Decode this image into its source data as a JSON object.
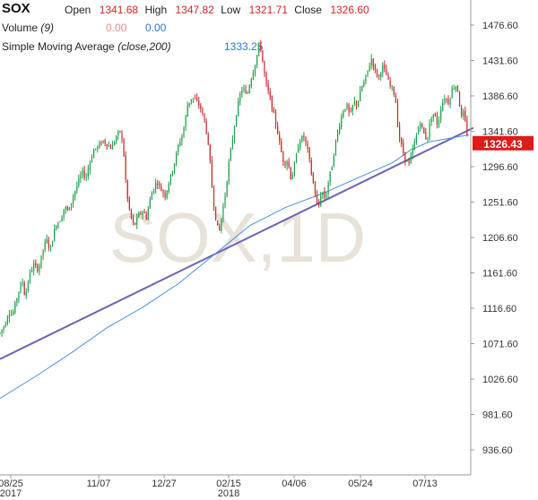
{
  "header": {
    "symbol": "SOX",
    "open_label": "Open",
    "open": "1341.68",
    "high_label": "High",
    "high": "1347.82",
    "low_label": "Low",
    "low": "1321.71",
    "close_label": "Close",
    "close": "1326.60",
    "volume_label": "Volume",
    "volume_param": "(9)",
    "volume_val1": "0.00",
    "volume_val2": "0.00",
    "sma_label": "Simple Moving Average",
    "sma_param": "(close,200)",
    "sma_value": "1333.25"
  },
  "watermark": "SOX,1D",
  "last_price_badge": "1326.43",
  "colors": {
    "up": "#1f9e4a",
    "down": "#c42a2a",
    "sma": "#4a90e2",
    "trendline": "#6b62b5",
    "badge": "#e01b1b"
  },
  "chart_data": {
    "type": "candlestick",
    "title": "SOX",
    "ylim": [
      920,
      1495
    ],
    "y_ticks": [
      "1476.60",
      "1431.60",
      "1386.60",
      "1341.60",
      "1296.60",
      "1251.60",
      "1206.60",
      "1161.60",
      "1116.60",
      "1071.60",
      "1026.60",
      "981.60",
      "936.60"
    ],
    "x_ticks": [
      {
        "label": "08/25",
        "sub": "2017"
      },
      {
        "label": "11/07",
        "sub": ""
      },
      {
        "label": "12/27",
        "sub": ""
      },
      {
        "label": "02/15",
        "sub": "2018"
      },
      {
        "label": "04/06",
        "sub": ""
      },
      {
        "label": "05/24",
        "sub": ""
      },
      {
        "label": "07/13",
        "sub": ""
      }
    ],
    "price_path": [
      [
        0,
        1085
      ],
      [
        5,
        1095
      ],
      [
        10,
        1112
      ],
      [
        14,
        1108
      ],
      [
        20,
        1135
      ],
      [
        25,
        1152
      ],
      [
        28,
        1130
      ],
      [
        33,
        1160
      ],
      [
        38,
        1172
      ],
      [
        43,
        1165
      ],
      [
        48,
        1190
      ],
      [
        52,
        1205
      ],
      [
        56,
        1190
      ],
      [
        62,
        1222
      ],
      [
        68,
        1230
      ],
      [
        72,
        1245
      ],
      [
        77,
        1240
      ],
      [
        82,
        1260
      ],
      [
        87,
        1275
      ],
      [
        92,
        1290
      ],
      [
        96,
        1282
      ],
      [
        100,
        1300
      ],
      [
        105,
        1318
      ],
      [
        110,
        1322
      ],
      [
        115,
        1330
      ],
      [
        120,
        1325
      ],
      [
        125,
        1320
      ],
      [
        130,
        1335
      ],
      [
        135,
        1342
      ],
      [
        138,
        1320
      ],
      [
        142,
        1260
      ],
      [
        146,
        1235
      ],
      [
        150,
        1220
      ],
      [
        155,
        1235
      ],
      [
        160,
        1240
      ],
      [
        164,
        1232
      ],
      [
        168,
        1255
      ],
      [
        172,
        1270
      ],
      [
        176,
        1278
      ],
      [
        180,
        1268
      ],
      [
        185,
        1260
      ],
      [
        190,
        1280
      ],
      [
        195,
        1300
      ],
      [
        200,
        1325
      ],
      [
        205,
        1340
      ],
      [
        210,
        1375
      ],
      [
        215,
        1385
      ],
      [
        220,
        1380
      ],
      [
        225,
        1370
      ],
      [
        230,
        1350
      ],
      [
        235,
        1305
      ],
      [
        238,
        1260
      ],
      [
        241,
        1235
      ],
      [
        245,
        1210
      ],
      [
        249,
        1240
      ],
      [
        252,
        1260
      ],
      [
        256,
        1300
      ],
      [
        260,
        1330
      ],
      [
        264,
        1360
      ],
      [
        268,
        1385
      ],
      [
        272,
        1398
      ],
      [
        276,
        1385
      ],
      [
        280,
        1405
      ],
      [
        284,
        1420
      ],
      [
        288,
        1440
      ],
      [
        291,
        1455
      ],
      [
        294,
        1430
      ],
      [
        298,
        1400
      ],
      [
        302,
        1385
      ],
      [
        306,
        1365
      ],
      [
        310,
        1345
      ],
      [
        314,
        1320
      ],
      [
        318,
        1300
      ],
      [
        322,
        1305
      ],
      [
        326,
        1280
      ],
      [
        330,
        1300
      ],
      [
        335,
        1330
      ],
      [
        340,
        1335
      ],
      [
        345,
        1315
      ],
      [
        349,
        1285
      ],
      [
        353,
        1262
      ],
      [
        356,
        1240
      ],
      [
        360,
        1268
      ],
      [
        364,
        1255
      ],
      [
        368,
        1280
      ],
      [
        372,
        1300
      ],
      [
        376,
        1330
      ],
      [
        380,
        1350
      ],
      [
        384,
        1368
      ],
      [
        388,
        1375
      ],
      [
        392,
        1360
      ],
      [
        396,
        1380
      ],
      [
        400,
        1375
      ],
      [
        404,
        1395
      ],
      [
        408,
        1405
      ],
      [
        412,
        1420
      ],
      [
        416,
        1435
      ],
      [
        420,
        1418
      ],
      [
        424,
        1410
      ],
      [
        428,
        1425
      ],
      [
        432,
        1415
      ],
      [
        436,
        1400
      ],
      [
        440,
        1395
      ],
      [
        443,
        1380
      ],
      [
        446,
        1340
      ],
      [
        450,
        1320
      ],
      [
        454,
        1305
      ],
      [
        458,
        1300
      ],
      [
        462,
        1318
      ],
      [
        466,
        1335
      ],
      [
        470,
        1355
      ],
      [
        474,
        1340
      ],
      [
        478,
        1330
      ],
      [
        482,
        1358
      ],
      [
        486,
        1365
      ],
      [
        490,
        1348
      ],
      [
        494,
        1375
      ],
      [
        498,
        1385
      ],
      [
        502,
        1378
      ],
      [
        506,
        1395
      ],
      [
        510,
        1400
      ],
      [
        513,
        1392
      ],
      [
        516,
        1358
      ],
      [
        519,
        1365
      ],
      [
        522,
        1345
      ],
      [
        525,
        1326
      ]
    ],
    "sma_path": [
      [
        0,
        1002
      ],
      [
        40,
        1030
      ],
      [
        80,
        1060
      ],
      [
        120,
        1092
      ],
      [
        160,
        1118
      ],
      [
        200,
        1148
      ],
      [
        240,
        1185
      ],
      [
        280,
        1222
      ],
      [
        320,
        1245
      ],
      [
        360,
        1262
      ],
      [
        400,
        1282
      ],
      [
        440,
        1302
      ],
      [
        460,
        1318
      ],
      [
        480,
        1328
      ],
      [
        500,
        1332
      ],
      [
        520,
        1336
      ],
      [
        525,
        1337
      ]
    ],
    "trendline": [
      [
        0,
        1052
      ],
      [
        530,
        1346
      ]
    ]
  }
}
